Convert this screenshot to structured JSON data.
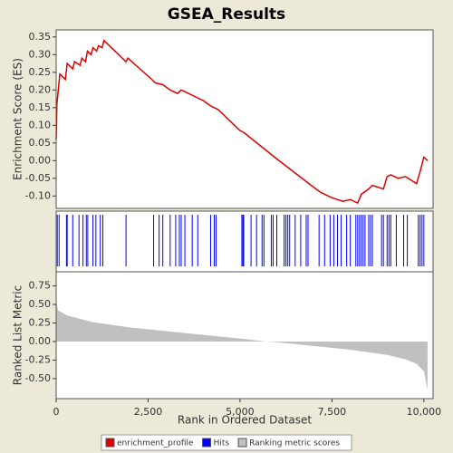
{
  "chart_data": [
    {
      "type": "line",
      "title": "GSEA_Results",
      "ylabel": "Enrichment Score (ES)",
      "xlim": [
        0,
        10250
      ],
      "ylim": [
        -0.135,
        0.37
      ],
      "yticks": [
        {
          "value": -0.1,
          "label": "-0.10"
        },
        {
          "value": -0.05,
          "label": "-0.05"
        },
        {
          "value": 0,
          "label": "0.00"
        },
        {
          "value": 0.05,
          "label": "0.05"
        },
        {
          "value": 0.1,
          "label": "0.10"
        },
        {
          "value": 0.15,
          "label": "0.15"
        },
        {
          "value": 0.2,
          "label": "0.20"
        },
        {
          "value": 0.25,
          "label": "0.25"
        },
        {
          "value": 0.3,
          "label": "0.30"
        },
        {
          "value": 0.35,
          "label": "0.35"
        }
      ],
      "x": [
        0,
        20,
        100,
        250,
        300,
        450,
        500,
        650,
        700,
        800,
        850,
        950,
        1000,
        1100,
        1150,
        1250,
        1300,
        1900,
        1950,
        2600,
        2700,
        2900,
        3100,
        3300,
        3400,
        3600,
        3800,
        4000,
        4200,
        4400,
        5000,
        5100,
        6000,
        6500,
        7000,
        7200,
        7500,
        7800,
        8000,
        8200,
        8300,
        8500,
        8600,
        8900,
        9000,
        9100,
        9300,
        9500,
        9800,
        9900,
        10000,
        10100
      ],
      "series": [
        {
          "name": "enrichment_profile",
          "color": "#dd0000",
          "values": [
            0.06,
            0.16,
            0.245,
            0.23,
            0.275,
            0.26,
            0.28,
            0.27,
            0.29,
            0.28,
            0.31,
            0.3,
            0.32,
            0.31,
            0.325,
            0.32,
            0.34,
            0.28,
            0.29,
            0.23,
            0.22,
            0.215,
            0.2,
            0.19,
            0.2,
            0.19,
            0.18,
            0.17,
            0.155,
            0.145,
            0.085,
            0.08,
            0.005,
            -0.035,
            -0.075,
            -0.09,
            -0.105,
            -0.115,
            -0.11,
            -0.12,
            -0.095,
            -0.08,
            -0.07,
            -0.08,
            -0.045,
            -0.04,
            -0.05,
            -0.045,
            -0.065,
            -0.03,
            0.01,
            0.0
          ]
        }
      ]
    },
    {
      "type": "hits",
      "xlim": [
        0,
        10250
      ],
      "series": [
        {
          "name": "Hits",
          "color": "#0000ff",
          "x": [
            30,
            80,
            280,
            300,
            450,
            620,
            730,
            820,
            860,
            1000,
            1080,
            1200,
            1270,
            1900,
            2650,
            2800,
            2900,
            3100,
            3250,
            3350,
            3400,
            3500,
            3700,
            3850,
            4200,
            4300,
            4350,
            5050,
            5080,
            5100,
            5300,
            5450,
            5600,
            5650,
            5850,
            5900,
            6000,
            6200,
            6250,
            6300,
            6350,
            6500,
            6650,
            6800,
            6850,
            7150,
            7300,
            7450,
            7550,
            7650,
            7750,
            7900,
            8000,
            8150,
            8200,
            8250,
            8300,
            8350,
            8400,
            8500,
            8550,
            8600,
            8850,
            8900,
            9000,
            9050,
            9100,
            9250,
            9450,
            9550,
            9850,
            9900,
            9950,
            10000
          ]
        }
      ]
    },
    {
      "type": "area",
      "xlabel": "Rank in Ordered Dataset",
      "ylabel": "Ranked List Metric",
      "xlim": [
        0,
        10250
      ],
      "ylim": [
        -0.77,
        0.94
      ],
      "xticks": [
        0,
        {
          "value": 2500,
          "label": "2,500"
        },
        {
          "value": 5000,
          "label": "5,000"
        },
        {
          "value": 7500,
          "label": "7,500"
        },
        {
          "value": 10000,
          "label": "10,000"
        }
      ],
      "yticks": [
        {
          "value": -0.5,
          "label": "-0.50"
        },
        {
          "value": -0.25,
          "label": "-0.25"
        },
        {
          "value": 0,
          "label": "0.00"
        },
        {
          "value": 0.25,
          "label": "0.25"
        },
        {
          "value": 0.5,
          "label": "0.50"
        },
        {
          "value": 0.75,
          "label": "0.75"
        }
      ],
      "x": [
        0,
        50,
        300,
        1000,
        2000,
        3000,
        4000,
        5000,
        5700,
        6000,
        7000,
        8000,
        9000,
        9500,
        9800,
        10000,
        10100
      ],
      "series": [
        {
          "name": "Ranking metric scores",
          "color": "#c0c0c0",
          "values": [
            0.55,
            0.42,
            0.35,
            0.26,
            0.19,
            0.14,
            0.09,
            0.04,
            0.0,
            -0.01,
            -0.06,
            -0.11,
            -0.18,
            -0.24,
            -0.3,
            -0.4,
            -0.65
          ]
        }
      ]
    }
  ]
}
